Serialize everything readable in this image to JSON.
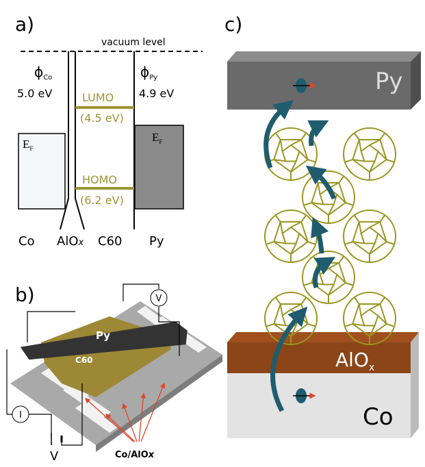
{
  "panel_a": {
    "label": "a)",
    "vacuum_level": "vacuum level",
    "phi_co": {
      "symbol": "ϕ",
      "sub": "Co"
    },
    "work_co": "5.0 eV",
    "lumo": "LUMO",
    "lumo_energy": "(4.5 eV)",
    "phi_py": {
      "symbol": "ϕ",
      "sub": "Py"
    },
    "work_py": "4.9 eV",
    "fermi_left": {
      "symbol": "E",
      "sub": "F"
    },
    "fermi_right": {
      "symbol": "E",
      "sub": "F"
    },
    "homo": "HOMO",
    "homo_energy": "(6.2 eV)",
    "layer_co": "Co",
    "layer_alox": {
      "text": "AlO",
      "sub": "x"
    },
    "layer_c60": "C60",
    "layer_py": "Py"
  },
  "panel_b": {
    "label": "b)",
    "py": "Py",
    "c60": "C60",
    "voltmeter": "V",
    "current": "I",
    "voltage": "V",
    "electrodes": {
      "text": "Co/AlO",
      "sub": "x"
    }
  },
  "panel_c": {
    "label": "c)",
    "py": "Py",
    "alox": {
      "text": "AlO",
      "sub": "x"
    },
    "co": "Co"
  }
}
